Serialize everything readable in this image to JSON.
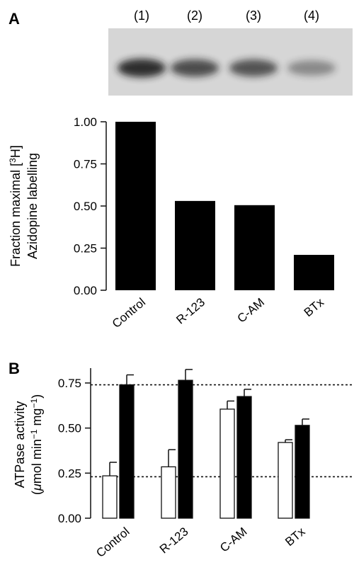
{
  "panels": {
    "a": {
      "letter": "A"
    },
    "b": {
      "letter": "B"
    }
  },
  "blot": {
    "lanes": [
      "(1)",
      "(2)",
      "(3)",
      "(4)"
    ],
    "band_intensity": [
      1.0,
      0.75,
      0.7,
      0.25
    ],
    "background": "#d6d6d6",
    "band_color": "#1a1a1a"
  },
  "chart_data": [
    {
      "type": "bar",
      "panel": "A",
      "categories": [
        "Control",
        "R-123",
        "C-AM",
        "BTx"
      ],
      "values": [
        1.0,
        0.53,
        0.505,
        0.21
      ],
      "ylabel_line1": "Fraction maximal [",
      "ylabel_sup": "3",
      "ylabel_line1_end": "H]",
      "ylabel_line2": "Azidopine labelling",
      "ylim": [
        0,
        1.0
      ],
      "yticks": [
        "0.00",
        "0.25",
        "0.50",
        "0.75",
        "1.00"
      ],
      "ytick_values": [
        0,
        0.25,
        0.5,
        0.75,
        1.0
      ],
      "bar_color": "#000000",
      "grid": false
    },
    {
      "type": "bar",
      "panel": "B",
      "categories": [
        "Control",
        "R-123",
        "C-AM",
        "BTx"
      ],
      "series": [
        {
          "values": [
            0.235,
            0.285,
            0.605,
            0.42
          ],
          "errors": [
            0.075,
            0.095,
            0.045,
            0.015
          ],
          "color": "#ffffff"
        },
        {
          "values": [
            0.74,
            0.765,
            0.675,
            0.515
          ],
          "errors": [
            0.055,
            0.06,
            0.04,
            0.035
          ],
          "color": "#000000"
        }
      ],
      "reference_lines": [
        0.74,
        0.23
      ],
      "ylabel_line1": "ATPase activity",
      "ylabel_line2_parts": [
        "(",
        "μ",
        "mol min",
        "−1",
        " mg",
        "−1",
        ")"
      ],
      "ylim": [
        0,
        0.8
      ],
      "yticks": [
        "0.00",
        "0.25",
        "0.50",
        "0.75"
      ],
      "ytick_values": [
        0,
        0.25,
        0.5,
        0.75
      ],
      "grid": false
    }
  ]
}
